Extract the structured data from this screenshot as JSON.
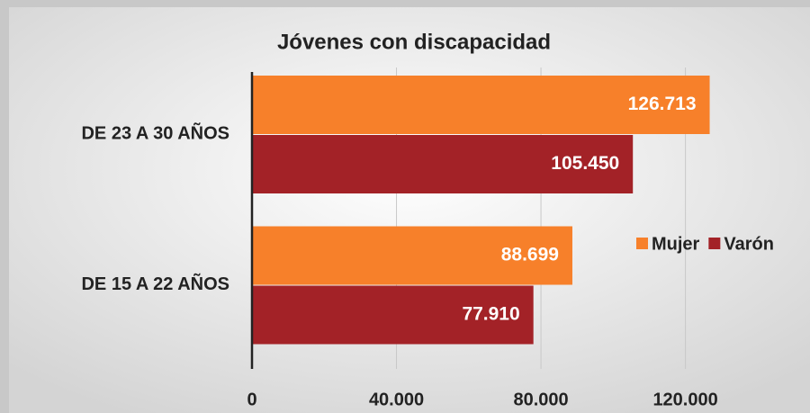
{
  "chart_data": {
    "type": "barh",
    "title": "Jóvenes con discapacidad",
    "categories": [
      "DE 23 A 30 AÑOS",
      "DE 15 A 22 AÑOS"
    ],
    "series": [
      {
        "name": "Mujer",
        "color": "#f7802a",
        "values": [
          126713,
          88699
        ],
        "value_labels": [
          "126.713",
          "88.699"
        ]
      },
      {
        "name": "Varón",
        "color": "#a32227",
        "values": [
          105450,
          77910
        ],
        "value_labels": [
          "105.450",
          "77.910"
        ]
      }
    ],
    "xlim": [
      0,
      150000
    ],
    "xticks": [
      0,
      {
        "value": 40000,
        "label": "40.000"
      },
      {
        "value": 80000,
        "label": "80.000"
      },
      {
        "value": 120000,
        "label": "120.000"
      }
    ],
    "grid": true,
    "legend": "right"
  }
}
